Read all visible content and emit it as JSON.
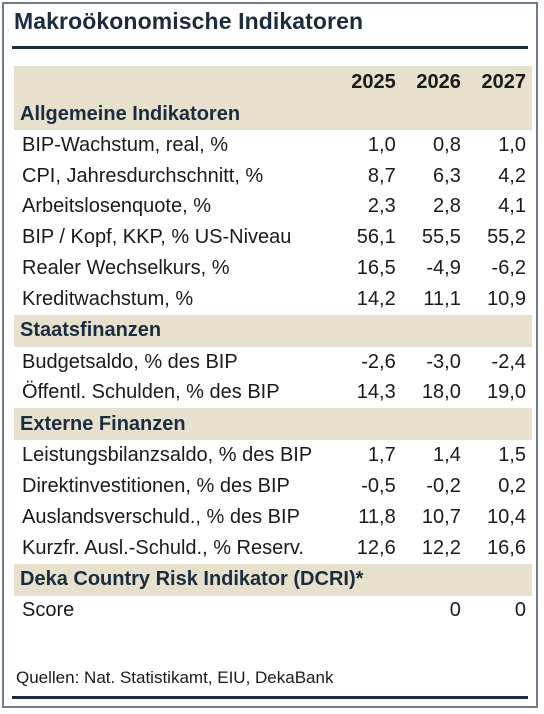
{
  "title": "Makroökonomische Indikatoren",
  "years": [
    "2025",
    "2026",
    "2027"
  ],
  "sections": [
    {
      "heading": "Allgemeine Indikatoren",
      "rows": [
        {
          "label": "BIP-Wachstum, real, %",
          "values": [
            "1,0",
            "0,8",
            "1,0"
          ]
        },
        {
          "label": "CPI, Jahresdurchschnitt, %",
          "values": [
            "8,7",
            "6,3",
            "4,2"
          ]
        },
        {
          "label": "Arbeitslosenquote, %",
          "values": [
            "2,3",
            "2,8",
            "4,1"
          ]
        },
        {
          "label": "BIP / Kopf, KKP, % US-Niveau",
          "values": [
            "56,1",
            "55,5",
            "55,2"
          ]
        },
        {
          "label": "Realer Wechselkurs, %",
          "values": [
            "16,5",
            "-4,9",
            "-6,2"
          ]
        },
        {
          "label": "Kreditwachstum, %",
          "values": [
            "14,2",
            "11,1",
            "10,9"
          ]
        }
      ]
    },
    {
      "heading": "Staatsfinanzen",
      "rows": [
        {
          "label": "Budgetsaldo, % des BIP",
          "values": [
            "-2,6",
            "-3,0",
            "-2,4"
          ]
        },
        {
          "label": "Öffentl. Schulden, % des BIP",
          "values": [
            "14,3",
            "18,0",
            "19,0"
          ]
        }
      ]
    },
    {
      "heading": "Externe Finanzen",
      "rows": [
        {
          "label": "Leistungsbilanzsaldo, % des BIP",
          "values": [
            "1,7",
            "1,4",
            "1,5"
          ]
        },
        {
          "label": "Direktinvestitionen, % des BIP",
          "values": [
            "-0,5",
            "-0,2",
            "0,2"
          ]
        },
        {
          "label": "Auslandsverschuld., % des BIP",
          "values": [
            "11,8",
            "10,7",
            "10,4"
          ]
        },
        {
          "label": "Kurzfr. Ausl.-Schuld., % Reserv.",
          "values": [
            "12,6",
            "12,2",
            "16,6"
          ]
        }
      ]
    },
    {
      "heading": "Deka Country Risk Indikator (DCRI)*",
      "rows": [
        {
          "label": "Score",
          "values": [
            "",
            "0",
            "0"
          ]
        }
      ]
    }
  ],
  "source": "Quellen: Nat. Statistikamt, EIU, DekaBank",
  "colors": {
    "header_bg": "#e6e0cc",
    "title": "#1b2c3f",
    "rule": "#1b2c3f",
    "border": "#6f7b86"
  }
}
